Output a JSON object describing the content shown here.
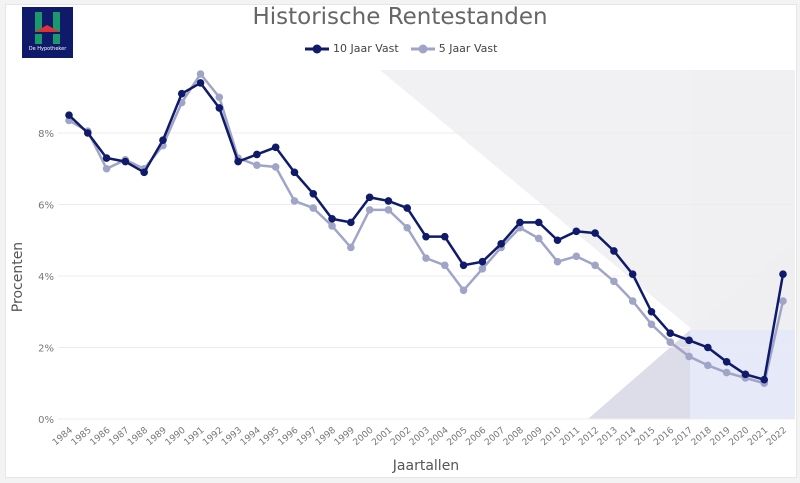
{
  "logo": {
    "text": "De Hypotheker"
  },
  "chart_data": {
    "type": "line",
    "title": "Historische Rentestanden",
    "xlabel": "Jaartallen",
    "ylabel": "Procenten",
    "ylim": [
      0,
      9.8
    ],
    "yticks": [
      "0%",
      "2%",
      "4%",
      "6%",
      "8%"
    ],
    "ytick_values": [
      0,
      2,
      4,
      6,
      8
    ],
    "grid": true,
    "legend": "top-center",
    "x": [
      "1984",
      "1985",
      "1986",
      "1987",
      "1988",
      "1989",
      "1990",
      "1991",
      "1992",
      "1993",
      "1994",
      "1995",
      "1996",
      "1997",
      "1998",
      "1999",
      "2000",
      "2001",
      "2002",
      "2003",
      "2004",
      "2005",
      "2006",
      "2007",
      "2008",
      "2009",
      "2010",
      "2011",
      "2012",
      "2013",
      "2014",
      "2015",
      "2016",
      "2017",
      "2018",
      "2019",
      "2020",
      "2021",
      "2022"
    ],
    "series": [
      {
        "name": "10 Jaar Vast",
        "color": "#0f1a6b",
        "values": [
          8.5,
          8.0,
          7.3,
          7.2,
          6.9,
          7.8,
          9.1,
          9.4,
          8.7,
          7.2,
          7.4,
          7.6,
          6.9,
          6.3,
          5.6,
          5.5,
          6.2,
          6.1,
          5.9,
          5.1,
          5.1,
          4.3,
          4.4,
          4.9,
          5.5,
          5.5,
          5.0,
          5.25,
          5.2,
          4.7,
          4.05,
          3.0,
          2.4,
          2.2,
          2.0,
          1.6,
          1.25,
          1.1,
          4.05
        ]
      },
      {
        "name": "5 Jaar Vast",
        "color": "#a0a5c8",
        "values": [
          8.35,
          8.05,
          7.0,
          7.25,
          7.0,
          7.65,
          8.85,
          9.65,
          9.0,
          7.3,
          7.1,
          7.05,
          6.1,
          5.9,
          5.4,
          4.8,
          5.85,
          5.85,
          5.35,
          4.5,
          4.3,
          3.6,
          4.2,
          4.8,
          5.35,
          5.05,
          4.4,
          4.55,
          4.3,
          3.85,
          3.3,
          2.65,
          2.15,
          1.75,
          1.5,
          1.3,
          1.15,
          1.0,
          3.3
        ]
      }
    ]
  }
}
